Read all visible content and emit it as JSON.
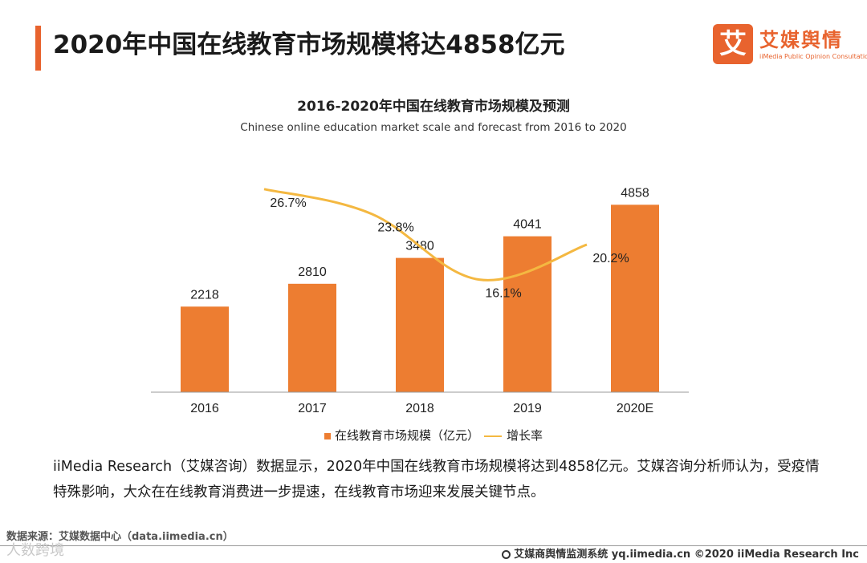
{
  "header": {
    "title": "2020年中国在线教育市场规模将达4858亿元",
    "logo_mark": "艾",
    "logo_name": "艾媒舆情",
    "logo_tagline": "iiMedia Public Opinion Consultation"
  },
  "chart_data": {
    "type": "bar",
    "title": "2016-2020年中国在线教育市场规模及预测",
    "subtitle": "Chinese online education market scale and forecast from 2016 to 2020",
    "categories": [
      "2016",
      "2017",
      "2018",
      "2019",
      "2020E"
    ],
    "series": [
      {
        "name": "在线教育市场规模（亿元）",
        "type": "bar",
        "values": [
          2218,
          2810,
          3480,
          4041,
          4858
        ],
        "labels": [
          "2218",
          "2810",
          "3480",
          "4041",
          "4858"
        ]
      },
      {
        "name": "增长率",
        "type": "line",
        "values": [
          null,
          26.7,
          23.8,
          16.1,
          20.2
        ],
        "labels": [
          "",
          "26.7%",
          "23.8%",
          "16.1%",
          "20.2%"
        ]
      }
    ],
    "ylim": [
      0,
      5800
    ],
    "line_ylim": [
      0,
      28
    ],
    "colors": {
      "bar": "#ed7d31",
      "line": "#f4b841",
      "axis": "#999999"
    }
  },
  "legend": {
    "bar_label": "在线教育市场规模（亿元）",
    "line_label": "增长率"
  },
  "description": "iiMedia Research（艾媒咨询）数据显示，2020年中国在线教育市场规模将达到4858亿元。艾媒咨询分析师认为，受疫情特殊影响，大众在在线教育消费进一步提速，在线教育市场迎来发展关键节点。",
  "source": "数据来源：艾媒数据中心（data.iimedia.cn）",
  "watermark": "人数跨境",
  "footer": "艾媒商舆情监测系统 yq.iimedia.cn ©2020 iiMedia Research Inc"
}
